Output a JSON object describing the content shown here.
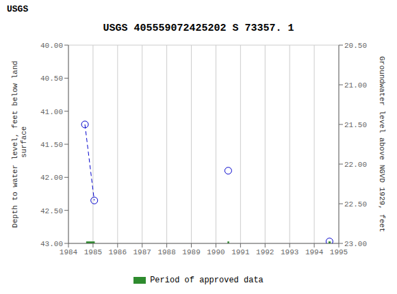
{
  "chart_data": {
    "type": "scatter",
    "title": "USGS 405559072425202 S 73357. 1",
    "annotations": [
      "USGS"
    ],
    "ylabel": "Depth to water level, feet below land\n surface",
    "y2label": "Groundwater level above NGVD 1929, feet",
    "xlim": [
      1984,
      1995
    ],
    "xticks": [
      1984,
      1985,
      1986,
      1987,
      1988,
      1989,
      1990,
      1991,
      1992,
      1993,
      1994,
      1995
    ],
    "ylim": [
      43.0,
      40.0
    ],
    "yticks": [
      {
        "value": 40.0,
        "label": "40.00"
      },
      {
        "value": 40.5,
        "label": "40.50"
      },
      {
        "value": 41.0,
        "label": "41.00"
      },
      {
        "value": 41.5,
        "label": "41.50"
      },
      {
        "value": 42.0,
        "label": "42.00"
      },
      {
        "value": 42.5,
        "label": "42.50"
      },
      {
        "value": 43.0,
        "label": "43.00"
      }
    ],
    "y2lim": [
      23.0,
      20.5
    ],
    "y2ticks": [
      {
        "value": 20.5,
        "label": "20.50"
      },
      {
        "value": 21.0,
        "label": "21.00"
      },
      {
        "value": 21.5,
        "label": "21.50"
      },
      {
        "value": 22.0,
        "label": "22.00"
      },
      {
        "value": 22.5,
        "label": "22.50"
      },
      {
        "value": 23.0,
        "label": "23.00"
      }
    ],
    "grid": true,
    "legend": "bottom",
    "series": [
      {
        "type": "line",
        "x": [
          1984.67,
          1985.05
        ],
        "values": [
          41.2,
          42.35
        ],
        "color": "#0000cc",
        "line_style": "dashed"
      },
      {
        "type": "scatter",
        "x": [
          1984.67,
          1985.05,
          1990.5,
          1994.62
        ],
        "values": [
          41.2,
          42.35,
          41.9,
          42.97
        ],
        "color": "#0000cc",
        "marker": "circle"
      },
      {
        "type": "range",
        "name": "Period of approved data",
        "color": "#2e8b2e",
        "x_start": [
          1984.72,
          1990.47,
          1994.58
        ],
        "x_end": [
          1985.07,
          1990.54,
          1994.67
        ],
        "low": [
          42.97,
          42.97,
          42.97
        ],
        "high": [
          43.0,
          43.0,
          43.0
        ]
      }
    ]
  }
}
